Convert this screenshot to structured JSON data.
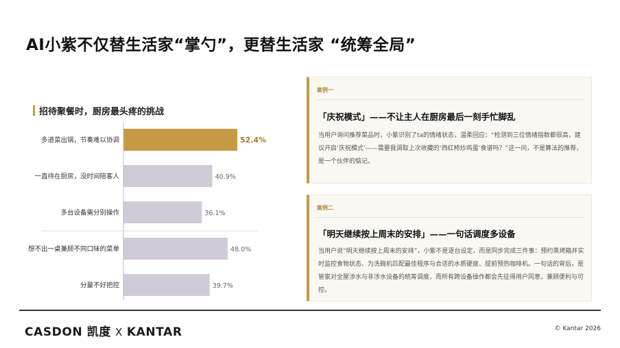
{
  "title": "AI小紫不仅替生活家“掌勺”，更替生活家 “统筹全局”",
  "chart_heading": "招待聚餐时，厨房最头疼的挑战",
  "chart_data": {
    "type": "bar",
    "orientation": "horizontal",
    "title": "招待聚餐时，厨房最头疼的挑战",
    "categories": [
      "多道菜出锅，节奏难以协调",
      "一直待在厨房，没时间陪客人",
      "多台设备需分别操作",
      "想不出一桌兼顾不同口味的菜单",
      "分量不好把控"
    ],
    "values": [
      52.4,
      40.9,
      36.1,
      48.0,
      39.7
    ],
    "value_labels": [
      "52.4%",
      "40.9%",
      "36.1%",
      "48.0%",
      "39.7%"
    ],
    "highlight_index": 0,
    "colors": {
      "highlight": "#c49a45",
      "default": "#d1cbd9",
      "highlight_label": "#a57c2a",
      "default_label": "#666666"
    }
  },
  "case1": {
    "tag": "案例一",
    "title": "「庆祝模式」——不让主人在厨房最后一刻手忙脚乱",
    "body": "当用户询问推荐菜品时，小紫识别了ta的情绪状态，温柔回应：“检测到三位情绪指数都很高，建议开启‘庆祝模式’——需要我调取上次收藏的‘西红柿炒鸡蛋’食谱吗？”这一问，不是算法的推荐，是一个伙伴的惦记。"
  },
  "case2": {
    "tag": "案例二",
    "title": "「明天继续按上周末的安排」——一句话调度多设备",
    "body": "当用户说“明天继续按上周末的安排”，小紫不是逐台设定，而是同步完成三件事：预约蒸烤箱并实时监控食物状态、为洗碗机匹配最佳程序与合适的水质硬度、提前预热咖啡机。一句话的背后，是管家对全屋涉水与非涉水设备的统筹调度，而所有跨设备操作都会先征得用户同意，兼顾便利与可控。"
  },
  "footer": {
    "logo_left": "CASDON 凯度",
    "logo_x": "X",
    "logo_right": "KANTAR",
    "copyright": "© Kantar 2026"
  }
}
